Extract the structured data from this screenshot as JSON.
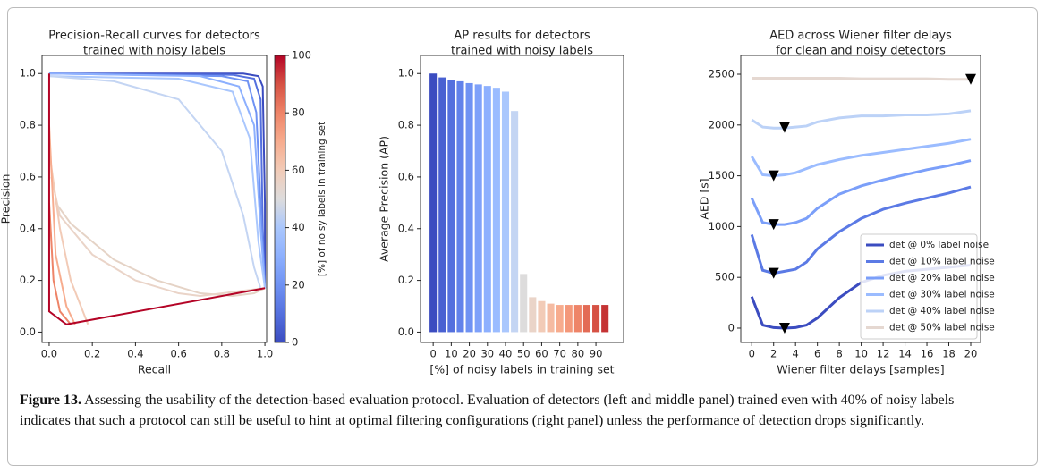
{
  "chart_data": [
    {
      "type": "pr",
      "title": [
        "Precision-Recall curves for detectors",
        "trained with noisy labels"
      ],
      "x_label": "Recall",
      "y_label": "Precision",
      "xlim": [
        -0.033,
        1.008
      ],
      "ylim": [
        -0.04,
        1.07
      ],
      "xticks": [
        {
          "value": 0,
          "label": "0.0"
        },
        {
          "value": 0.2,
          "label": "0.2"
        },
        {
          "value": 0.4,
          "label": "0.4"
        },
        {
          "value": 0.6,
          "label": "0.6"
        },
        {
          "value": 0.8,
          "label": "0.8"
        },
        {
          "value": 1,
          "label": "1.0"
        }
      ],
      "yticks": [
        {
          "value": 0,
          "label": "0.0"
        },
        {
          "value": 0.2,
          "label": "0.2"
        },
        {
          "value": 0.4,
          "label": "0.4"
        },
        {
          "value": 0.6,
          "label": "0.6"
        },
        {
          "value": 0.8,
          "label": "0.8"
        },
        {
          "value": 1,
          "label": "1.0"
        }
      ],
      "colorbar": {
        "label": "[%] of noisy labels in training set",
        "lim": [
          0,
          100
        ],
        "ticks": [
          0,
          20,
          40,
          60,
          80,
          100
        ],
        "colors": [
          "#3b4cc0",
          "#5470de",
          "#6f92f3",
          "#8db0fe",
          "#aac7fd",
          "#dddcdc",
          "#f2cbb7",
          "#f7ac8e",
          "#ee8468",
          "#d65244",
          "#b40426"
        ]
      },
      "series": [
        {
          "color": "#3b4cc0",
          "x": [
            0,
            0.9,
            0.97,
            0.99,
            1.0,
            1.0
          ],
          "values": [
            1.0,
            1.0,
            0.99,
            0.95,
            0.5,
            0.17
          ]
        },
        {
          "color": "#5470de",
          "x": [
            0,
            0.85,
            0.95,
            0.98,
            0.99,
            1.0
          ],
          "values": [
            1.0,
            0.995,
            0.98,
            0.9,
            0.4,
            0.17
          ]
        },
        {
          "color": "#6f92f3",
          "x": [
            0,
            0.8,
            0.92,
            0.96,
            0.98,
            1.0
          ],
          "values": [
            1.0,
            0.99,
            0.97,
            0.85,
            0.5,
            0.17
          ]
        },
        {
          "color": "#8db0fe",
          "x": [
            0,
            0.7,
            0.88,
            0.95,
            0.98,
            1.0
          ],
          "values": [
            1.0,
            0.99,
            0.95,
            0.8,
            0.4,
            0.17
          ]
        },
        {
          "color": "#aac7fd",
          "x": [
            0,
            0.6,
            0.85,
            0.93,
            0.97,
            1.0
          ],
          "values": [
            0.99,
            0.98,
            0.93,
            0.75,
            0.35,
            0.17
          ]
        },
        {
          "color": "#c4d5f3",
          "x": [
            0,
            0.3,
            0.6,
            0.8,
            0.9,
            0.95,
            0.98
          ],
          "values": [
            0.99,
            0.97,
            0.9,
            0.7,
            0.45,
            0.25,
            0.17
          ]
        },
        {
          "color": "#e5d3c6",
          "x": [
            0.03,
            0.1,
            0.3,
            0.5,
            0.7,
            0.85,
            0.95,
            1.0
          ],
          "values": [
            0.5,
            0.42,
            0.28,
            0.2,
            0.15,
            0.14,
            0.15,
            0.17
          ]
        },
        {
          "color": "#ead4c8",
          "x": [
            0.01,
            0.05,
            0.2,
            0.4,
            0.6,
            0.7,
            1.0
          ],
          "values": [
            0.6,
            0.45,
            0.3,
            0.2,
            0.15,
            0.14,
            0.17
          ]
        },
        {
          "color": "#f2cbb7",
          "x": [
            0,
            0.05,
            0.1,
            0.18
          ],
          "values": [
            0.7,
            0.4,
            0.2,
            0.03
          ]
        },
        {
          "color": "#f7ac8e",
          "x": [
            0,
            0.03,
            0.08,
            0.12
          ],
          "values": [
            0.8,
            0.3,
            0.1,
            0.03
          ]
        },
        {
          "color": "#ee8468",
          "x": [
            0,
            0.02,
            0.05,
            0.1
          ],
          "values": [
            0.5,
            0.2,
            0.08,
            0.03
          ]
        },
        {
          "color": "#b40426",
          "x": [
            0,
            0,
            0.08,
            1.0
          ],
          "values": [
            1.0,
            0.08,
            0.03,
            0.17
          ]
        }
      ]
    },
    {
      "type": "bar",
      "title": [
        "AP results for detectors",
        "trained with noisy labels"
      ],
      "x_label": "[%] of noisy labels in training set",
      "y_label": "Average Precision (AP)",
      "xlim": [
        -7,
        105.3
      ],
      "ylim": [
        -0.04,
        1.07
      ],
      "bar_width": 4,
      "xticks": [
        0,
        10,
        20,
        30,
        40,
        50,
        60,
        70,
        80,
        90
      ],
      "yticks": [
        {
          "value": 0,
          "label": "0.0"
        },
        {
          "value": 0.2,
          "label": "0.2"
        },
        {
          "value": 0.4,
          "label": "0.4"
        },
        {
          "value": 0.6,
          "label": "0.6"
        },
        {
          "value": 0.8,
          "label": "0.8"
        },
        {
          "value": 1,
          "label": "1.0"
        }
      ],
      "x": [
        0,
        5,
        10,
        15,
        20,
        25,
        30,
        35,
        40,
        45,
        50,
        55,
        60,
        65,
        70,
        75,
        80,
        85,
        90,
        95
      ],
      "values": [
        1.0,
        0.985,
        0.975,
        0.97,
        0.963,
        0.958,
        0.952,
        0.945,
        0.93,
        0.855,
        0.225,
        0.135,
        0.12,
        0.11,
        0.105,
        0.105,
        0.105,
        0.105,
        0.105,
        0.105
      ],
      "colors": [
        "#3b4cc0",
        "#4961d2",
        "#5470de",
        "#6282ea",
        "#6f92f3",
        "#7ea1fa",
        "#8db0fe",
        "#9bbcff",
        "#aac7fd",
        "#c4d5f3",
        "#dddcdc",
        "#ead4c8",
        "#f2cbb7",
        "#f5bba2",
        "#f7ac8e",
        "#f4987a",
        "#ee8468",
        "#e36b55",
        "#d65244",
        "#c53334"
      ]
    },
    {
      "type": "line",
      "title": [
        "AED across Wiener filter delays",
        "for clean and noisy detectors"
      ],
      "x_label": "Wiener filter delays [samples]",
      "y_label": "AED [s]",
      "xlim": [
        -1,
        20.9
      ],
      "ylim": [
        -141,
        2685
      ],
      "xticks": [
        0,
        2,
        4,
        6,
        8,
        10,
        12,
        14,
        16,
        18,
        20
      ],
      "yticks": [
        0,
        500,
        1000,
        1500,
        2000,
        2500
      ],
      "x": [
        0,
        1,
        2,
        3,
        4,
        5,
        6,
        8,
        10,
        12,
        14,
        16,
        18,
        20
      ],
      "series": [
        {
          "name": "det @ 0% label noise",
          "color": "#3b4cc0",
          "values": [
            310,
            30,
            5,
            0,
            5,
            30,
            100,
            300,
            450,
            520,
            560,
            580,
            600,
            620
          ]
        },
        {
          "name": "det @ 10% label noise",
          "color": "#5b7ae5",
          "values": [
            920,
            570,
            540,
            560,
            580,
            650,
            780,
            950,
            1080,
            1170,
            1230,
            1280,
            1330,
            1390
          ]
        },
        {
          "name": "det @ 20% label noise",
          "color": "#7b9ff9",
          "values": [
            1280,
            1040,
            1020,
            1020,
            1040,
            1080,
            1180,
            1320,
            1400,
            1460,
            1510,
            1560,
            1600,
            1650
          ]
        },
        {
          "name": "det @ 30% label noise",
          "color": "#9bbcff",
          "values": [
            1690,
            1510,
            1500,
            1510,
            1530,
            1570,
            1610,
            1660,
            1700,
            1730,
            1760,
            1790,
            1820,
            1860
          ]
        },
        {
          "name": "det @ 40% label noise",
          "color": "#bcd2f7",
          "values": [
            2050,
            1980,
            1970,
            1970,
            1980,
            1990,
            2030,
            2070,
            2090,
            2090,
            2100,
            2100,
            2110,
            2140
          ]
        },
        {
          "name": "det @ 50% label noise",
          "color": "#e5d8d1",
          "values": [
            2460,
            2460,
            2460,
            2460,
            2460,
            2460,
            2460,
            2460,
            2455,
            2455,
            2455,
            2455,
            2450,
            2450
          ]
        }
      ],
      "markers": {
        "x": [
          3,
          2,
          2,
          2,
          3,
          20
        ],
        "values": [
          0,
          540,
          1020,
          1500,
          1975,
          2450
        ]
      },
      "legend": "lower right"
    }
  ],
  "caption": {
    "label": "Figure 13.",
    "text": "Assessing the usability of the detection-based evaluation protocol. Evaluation of detectors (left and middle panel) trained even with 40% of noisy labels indicates that such a protocol can still be useful to hint at optimal filtering configurations (right panel) unless the performance of detection drops significantly."
  }
}
